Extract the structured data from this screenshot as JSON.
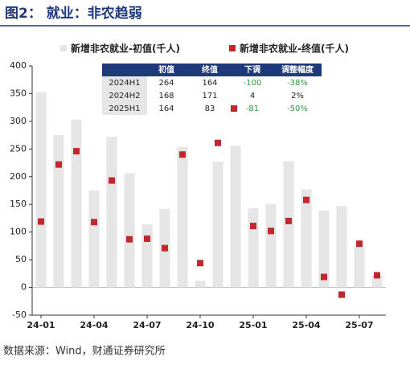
{
  "header": {
    "title": "图2： 就业：非农趋弱"
  },
  "chart_data": {
    "type": "bar",
    "categories": [
      "24-01",
      null,
      null,
      "24-04",
      null,
      null,
      "24-07",
      null,
      null,
      "24-10",
      null,
      null,
      "25-01",
      null,
      null,
      "25-04",
      null,
      null,
      "25-07",
      null
    ],
    "series": [
      {
        "name": "新增非农就业-初值(千人)",
        "color": "#e6e6e6",
        "values": [
          353,
          275,
          303,
          175,
          272,
          206,
          114,
          142,
          254,
          12,
          227,
          256,
          143,
          151,
          228,
          177,
          139,
          147,
          73,
          22
        ]
      },
      {
        "name": "新增非农就业-终值(千人)",
        "color": "#c0282d",
        "values": [
          119,
          222,
          246,
          118,
          193,
          87,
          88,
          71,
          240,
          44,
          261,
          null,
          111,
          102,
          120,
          158,
          19,
          -13,
          79,
          22
        ]
      }
    ],
    "ylim": [
      -50,
      400
    ],
    "yticks": [
      -50,
      0,
      50,
      100,
      150,
      200,
      250,
      300,
      350,
      400
    ]
  },
  "table": {
    "header": [
      "初值",
      "终值",
      "下调",
      "调整幅度"
    ],
    "rows": [
      [
        "2024H1",
        "264",
        "164",
        "-100",
        "-38%"
      ],
      [
        "2024H2",
        "168",
        "171",
        "4",
        "2%"
      ],
      [
        "2025H1",
        "164",
        "83",
        "-81",
        "-50%"
      ]
    ]
  },
  "footer": {
    "source": "数据来源：Wind，财通证券研究所"
  }
}
